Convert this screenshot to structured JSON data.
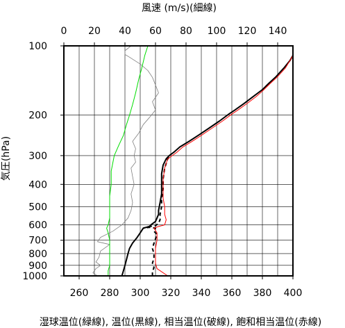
{
  "chart_data": {
    "type": "line",
    "title": "",
    "xlabel": "湿球温位(緑線), 温位(黒線), 相当温位(破線), 飽和相当温位(赤線)",
    "x2label": "風速 (m/s)(細線)",
    "ylabel": "気圧(hPa)",
    "xlim": [
      250,
      400
    ],
    "x2lim": [
      0,
      150
    ],
    "ylim": [
      1000,
      100
    ],
    "yscale": "log",
    "grid": true,
    "x_ticks": [
      260,
      280,
      300,
      320,
      340,
      360,
      380,
      400
    ],
    "x2_ticks": [
      0,
      20,
      40,
      60,
      80,
      100,
      120,
      140
    ],
    "y_ticks": [
      100,
      200,
      300,
      400,
      500,
      600,
      700,
      800,
      900,
      1000
    ],
    "series": [
      {
        "color": "#808080",
        "axis": "x2",
        "style": "thin",
        "points": [
          [
            22,
            1000
          ],
          [
            19,
            970
          ],
          [
            21,
            930
          ],
          [
            24,
            900
          ],
          [
            21,
            870
          ],
          [
            23,
            830
          ],
          [
            24,
            780
          ],
          [
            30,
            730
          ],
          [
            22,
            710
          ],
          [
            24,
            680
          ],
          [
            32,
            640
          ],
          [
            38,
            600
          ],
          [
            42,
            560
          ],
          [
            44,
            520
          ],
          [
            45,
            480
          ],
          [
            44,
            440
          ],
          [
            46,
            400
          ],
          [
            45,
            370
          ],
          [
            44,
            340
          ],
          [
            47,
            320
          ],
          [
            46,
            300
          ],
          [
            47,
            280
          ],
          [
            45,
            260
          ],
          [
            49,
            240
          ],
          [
            52,
            220
          ],
          [
            56,
            205
          ],
          [
            60,
            190
          ],
          [
            58,
            175
          ],
          [
            62,
            160
          ],
          [
            60,
            148
          ],
          [
            58,
            137
          ],
          [
            55,
            128
          ],
          [
            50,
            120
          ],
          [
            43,
            112
          ],
          [
            40,
            109
          ],
          [
            40,
            105
          ],
          [
            44,
            100
          ]
        ]
      },
      {
        "color": "#00dd00",
        "axis": "x",
        "points": [
          [
            279,
            1000
          ],
          [
            279,
            950
          ],
          [
            280,
            900
          ],
          [
            280,
            850
          ],
          [
            280,
            800
          ],
          [
            280,
            750
          ],
          [
            280,
            700
          ],
          [
            279,
            650
          ],
          [
            278,
            620
          ],
          [
            279,
            600
          ],
          [
            280,
            560
          ],
          [
            280,
            500
          ],
          [
            280,
            450
          ],
          [
            281,
            400
          ],
          [
            281,
            350
          ],
          [
            283,
            300
          ],
          [
            286,
            270
          ],
          [
            289,
            245
          ],
          [
            291,
            220
          ],
          [
            293,
            200
          ],
          [
            295,
            180
          ],
          [
            297,
            160
          ],
          [
            299,
            140
          ],
          [
            301,
            125
          ],
          [
            303,
            110
          ],
          [
            305,
            100
          ]
        ]
      },
      {
        "color": "#000000",
        "axis": "x",
        "points": [
          [
            288,
            1000
          ],
          [
            289,
            950
          ],
          [
            290,
            900
          ],
          [
            291,
            850
          ],
          [
            292,
            800
          ],
          [
            293,
            760
          ],
          [
            295,
            720
          ],
          [
            298,
            680
          ],
          [
            300,
            650
          ],
          [
            302,
            620
          ],
          [
            306,
            610
          ],
          [
            307,
            600
          ],
          [
            310,
            580
          ],
          [
            311,
            560
          ],
          [
            312,
            540
          ],
          [
            312,
            520
          ],
          [
            313,
            480
          ],
          [
            314,
            440
          ],
          [
            314,
            400
          ],
          [
            314,
            360
          ],
          [
            315,
            330
          ],
          [
            317,
            310
          ],
          [
            319,
            300
          ],
          [
            322,
            290
          ],
          [
            326,
            275
          ],
          [
            332,
            260
          ],
          [
            338,
            245
          ],
          [
            345,
            228
          ],
          [
            352,
            212
          ],
          [
            358,
            198
          ],
          [
            362,
            190
          ],
          [
            368,
            178
          ],
          [
            374,
            166
          ],
          [
            380,
            155
          ],
          [
            384,
            146
          ],
          [
            389,
            136
          ],
          [
            394,
            125
          ],
          [
            398,
            116
          ],
          [
            400,
            110
          ]
        ]
      },
      {
        "color": "#000000",
        "axis": "x",
        "dash": true,
        "points": [
          [
            308,
            1000
          ],
          [
            308,
            960
          ],
          [
            309,
            920
          ],
          [
            308,
            880
          ],
          [
            309,
            840
          ],
          [
            309,
            800
          ],
          [
            308,
            760
          ],
          [
            309,
            720
          ],
          [
            310,
            690
          ],
          [
            311,
            660
          ],
          [
            309,
            640
          ],
          [
            310,
            620
          ],
          [
            306,
            615
          ],
          [
            302,
            620
          ],
          [
            306,
            610
          ],
          [
            310,
            605
          ],
          [
            312,
            590
          ],
          [
            313,
            570
          ],
          [
            313,
            540
          ],
          [
            314,
            500
          ],
          [
            314,
            460
          ],
          [
            315,
            420
          ],
          [
            315,
            380
          ],
          [
            316,
            340
          ],
          [
            318,
            310
          ],
          [
            320,
            300
          ]
        ]
      },
      {
        "color": "#ff0000",
        "axis": "x",
        "points": [
          [
            318,
            1000
          ],
          [
            311,
            930
          ],
          [
            310,
            880
          ],
          [
            310,
            820
          ],
          [
            310,
            760
          ],
          [
            311,
            700
          ],
          [
            311,
            650
          ],
          [
            309,
            620
          ],
          [
            312,
            610
          ],
          [
            316,
            600
          ],
          [
            317,
            570
          ],
          [
            316,
            540
          ],
          [
            316,
            500
          ],
          [
            315,
            460
          ],
          [
            315,
            420
          ],
          [
            315,
            380
          ],
          [
            316,
            340
          ],
          [
            318,
            310
          ],
          [
            321,
            300
          ],
          [
            324,
            290
          ],
          [
            328,
            275
          ],
          [
            334,
            260
          ],
          [
            340,
            245
          ],
          [
            347,
            228
          ],
          [
            354,
            212
          ],
          [
            360,
            198
          ],
          [
            364,
            190
          ],
          [
            370,
            178
          ],
          [
            376,
            166
          ],
          [
            381,
            155
          ],
          [
            385,
            146
          ],
          [
            390,
            136
          ],
          [
            395,
            125
          ],
          [
            398,
            116
          ],
          [
            400,
            110
          ]
        ]
      }
    ]
  }
}
